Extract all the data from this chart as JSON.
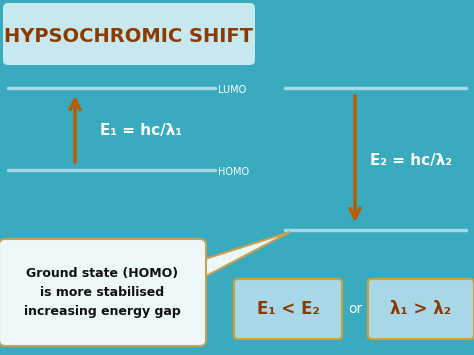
{
  "bg_color": "#3aabbf",
  "title_text": "HYPSOCHROMIC SHIFT",
  "title_box_color": "#c8e8f0",
  "title_text_color": "#8b3a00",
  "line_color": "#a8d8e8",
  "arrow_color": "#b85c00",
  "label_color": "#ffffff",
  "homo_label": "HOMO",
  "lumo_label": "LUMO",
  "eq1_text": "E₁ = hc/λ₁",
  "eq2_text": "E₂ = hc/λ₂",
  "box1_text": "E₁ < E₂",
  "box2_text": "λ₁ > λ₂",
  "or_text": "or",
  "callout_text": "Ground state (HOMO)\nis more stabilised\nincreasing energy gap",
  "callout_box_color": "#eef7fa",
  "callout_border_color": "#c8a050",
  "box_fill_color": "#a8d8e8",
  "box_border_color": "#d4a030",
  "eq_text_color": "#8b3a00",
  "eq_label_color": "#ffffff"
}
